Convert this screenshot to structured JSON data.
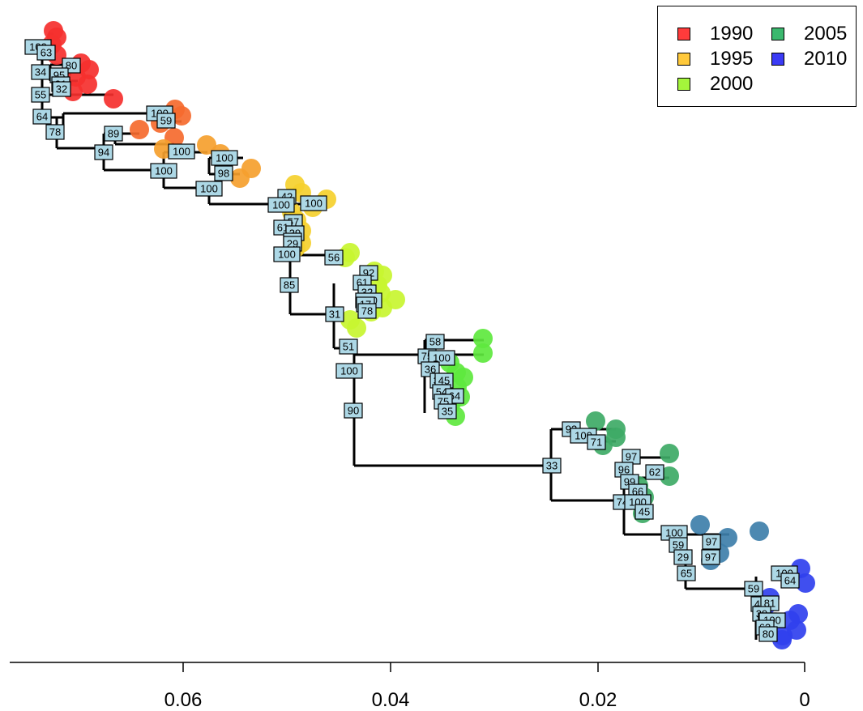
{
  "axis": {
    "ticks": [
      "0.06",
      "0.04",
      "0.02",
      "0"
    ]
  },
  "legend": {
    "items": [
      {
        "label": "1990",
        "color": "#ff3b3b"
      },
      {
        "label": "1995",
        "color": "#ffc93b"
      },
      {
        "label": "2000",
        "color": "#a4f53b"
      },
      {
        "label": "2005",
        "color": "#3bb86e"
      },
      {
        "label": "2010",
        "color": "#3b3bf5"
      }
    ]
  },
  "tips": {
    "clade_1990": {
      "color": "#f5302e",
      "count": 6
    },
    "clade_1990_orange": {
      "color": "#f56a2e",
      "count": 6
    },
    "clade_1995": {
      "color": "#f5a02e",
      "count": 6
    },
    "clade_1997": {
      "color": "#f5d02e",
      "count": 8
    },
    "clade_2000": {
      "color": "#c8f530",
      "count": 9
    },
    "clade_2002": {
      "color": "#5ee83e",
      "count": 10
    },
    "clade_2005": {
      "color": "#3eaa66",
      "count": 9
    },
    "clade_2008": {
      "color": "#3e7faa",
      "count": 5
    },
    "clade_2010": {
      "color": "#3040ee",
      "count": 9
    }
  },
  "bootstrap": [
    "100",
    "63",
    "80",
    "34",
    "95",
    "31",
    "32",
    "55",
    "64",
    "78",
    "100",
    "59",
    "89",
    "94",
    "100",
    "100",
    "98",
    "100",
    "100",
    "42",
    "100",
    "100",
    "57",
    "61",
    "39",
    "28",
    "29",
    "100",
    "56",
    "85",
    "92",
    "61",
    "32",
    "100",
    "17",
    "78",
    "31",
    "58",
    "75",
    "100",
    "36",
    "37",
    "45",
    "54",
    "64",
    "75",
    "35",
    "51",
    "100",
    "90",
    "93",
    "100",
    "71",
    "33",
    "97",
    "62",
    "96",
    "99",
    "66",
    "74",
    "100",
    "45",
    "100",
    "59",
    "97",
    "29",
    "97",
    "65",
    "100",
    "64",
    "59",
    "49",
    "81",
    "39",
    "45"
  ]
}
